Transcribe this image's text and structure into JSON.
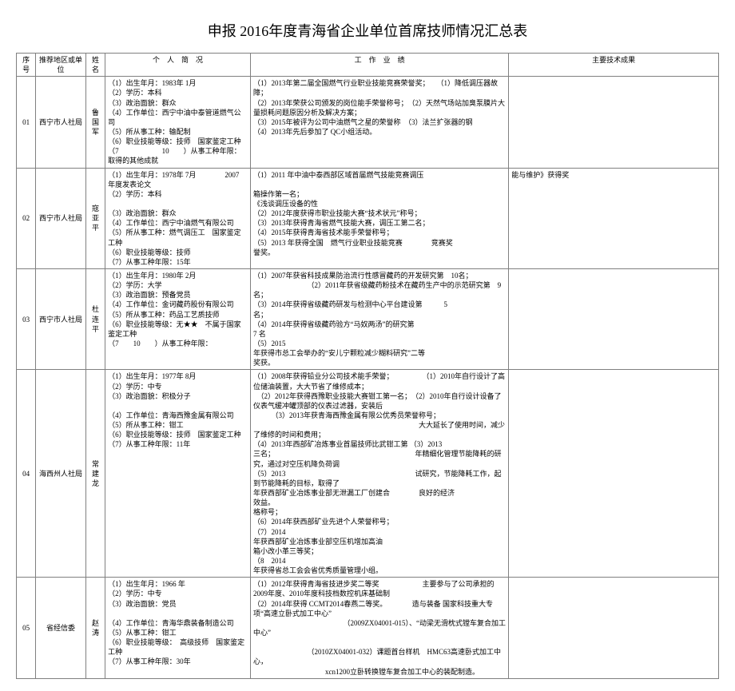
{
  "title": "申报 2016年度青海省企业单位首席技师情况汇总表",
  "headers": {
    "seq": "序号",
    "region": "推荐地区或单位",
    "name": "姓名",
    "personal": "个　人　简　况",
    "work": "工　作　业　绩",
    "ach": "主要技术成果"
  },
  "rows": [
    {
      "seq": "01",
      "region": "西宁市人社局",
      "name": "鲁国军",
      "personal": "（1）出生年月：1983年 1月\n（2）学历：本科\n（3）政治面貌：群众\n（4）工作单位：西宁中油中泰管道燃气公司\n（5）所从事工种：输配制\n（6）职业技能等级：技师　国家鉴定工种\n（7　　　　　　10　　）从事工种年限：\n取得的其他成就",
      "work": "（1）2013年第二届全国燃气行业职业技能竞赛荣誉奖；　　（1）降低调压器故障；\n（2）2013年荣获公司颁发的岗位能手荣誉称号；　（2）天然气场站加臭泵膜片大量损耗问题原因分析及解决方案；\n（3）2015年被评为公司中油燃气之星的荣誉称　（3）法兰扩张器的钢\n（4）2013年先后参加了 QC小组活动。",
      "ach": ""
    },
    {
      "seq": "02",
      "region": "西宁市人社局",
      "name": "寇亚平",
      "personal": "（1）出生年月：1978年 7月　　　　2007　年度发表论文\n（2）学历：本科\n\n（3）政治面貌：群众\n（4）工作单位：西宁中油燃气有限公司\n（5）所从事工种：燃气调压工　国家鉴定工种\n（6）职业技能等级：技师\n（7）从事工种年限：15年",
      "work": "（1）2011 年中油中泰西部区域首届燃气技能竞赛调压\n\n箱操作第一名；\n《浅谈调压设备的性\n（2）2012年度获得市职业技能大赛“技术状元”称号；　\n（3）2013年获得青海省燃气技能大赛，调压工第二名；\n（4）2015年获得青海省技术能手荣誉称号；\n（5）2013 年获得全国　燃气行业职业技能竞赛　　　　竞赛奖\n誉奖。",
      "ach": "能与维护》获得奖"
    },
    {
      "seq": "03",
      "region": "西宁市人社局",
      "name": "杜连平",
      "personal": "（1）出生年月：1980年 2月\n（2）学历：大学\n（3）政治面貌：预备党员\n（4）工作单位：金诃藏药股份有限公司\n（5）所从事工种：药品工艺质技师\n（6）职业技能等级：无★★　不属于国家鉴定工种\n（7　　10　　）从事工种年限：",
      "work": "（1）2007年获省科技成果防治流行性感冒藏药的开发研究第　10名；\n　　　　　　　　（2）2011年获省级藏药粉技术在藏药生产中的示范研究第　9名；\n（3）2014年获得省级藏药研发与检测中心平台建设第　　　5\n名；\n（4）2014年获得省级藏药验方“马奴两汤”的研究第\n7 名\n（5）2015\n年获得市总工会举办的“安儿宁颗粒减少糊料研究”二等\n奖获。",
      "ach": ""
    },
    {
      "seq": "04",
      "region": "海西州人社局",
      "name": "常建龙",
      "personal": "（1）出生年月：1977年 8月\n（2）学历：中专\n（3）政治面貌：积极分子\n\n（4）工作单位：青海西豫金属有限公司\n（5）所从事工种：钳工\n（6）职业技能等级：技师　国家鉴定工种\n（7）从事工种年限：11年",
      "work": "（1）2008年获得铅业分公司技术能手荣誉；　　　　　（1）2010年自行设计了高位储油装置，大大节省了维修成本；\n　（2）2012年获得西豫职业技能大赛钳工第一名；　（2）2010年自行设计设备了仪表气缓冲罐顶部的仪表过滤器，安装后\n　　　（3）2013年获青海西豫金属有限公优秀员荣誉称号；\n　　　　　　　　　　　　　　　　　　　　　　　大大延长了使用时间，减少了维修的时间和费用；\n（4）2013年西部矿冶炼事业首届技师比武钳工第 （3）2013\n三名；　　　　　　　　　　　　　　　　　　　　年精细化管理节能降耗的研究，通过对空压机降负荷调\n（5）2013　　　　　　　　　　　　　　　　　　试研究，节能降耗工作，起到节能降耗的目标，取得了\n年获西部矿业冶炼事业部无泄漏工厂创建合　　　　良好的经济　　　　　　　　　　　　　效益。\n格称号；\n（6）2014年获西部矿业先进个人荣誉称号；\n（7）2014\n年获西部矿业冶炼事业部空压机增加高油\n箱小改小革三等奖；\n（8　2014\n年获得省总工会会省优秀质量管理小组。",
      "ach": ""
    },
    {
      "seq": "05",
      "region": "省经信委",
      "name": "赵涛",
      "personal": "（1）出生年月：1966 年\n（2）学历：中专\n（3）政治面貌：党员\n\n（4）工作单位：青海华鼎装备制造公司\n（5）从事工种：钳工\n（6）职业技能等级：　高级技师　国家鉴定工种\n（7）从事工种年限：30年",
      "work": "（1）2012年获得青海省技进步奖二等奖　　　　　　主要参与了公司承担的　2009年度、2010年度科技档数控机床基础制\n（2）2014年获得 CCMT2014春燕二等奖。　　　　造与装备 国家科技重大专项“高速立卧式加工中心”\n　　　　　　　　　　　　　（2009ZX04001-015）、“动梁无滑枕式镗车复合加工中心”\n\n　　　　　　　　（2010ZX04001-032）课题首台样机　HMC63高速卧式加工中心，\n　　　　　　　　　　xcn1200立卧转换镗车复合加工中心的装配制造。",
      "ach": ""
    }
  ]
}
